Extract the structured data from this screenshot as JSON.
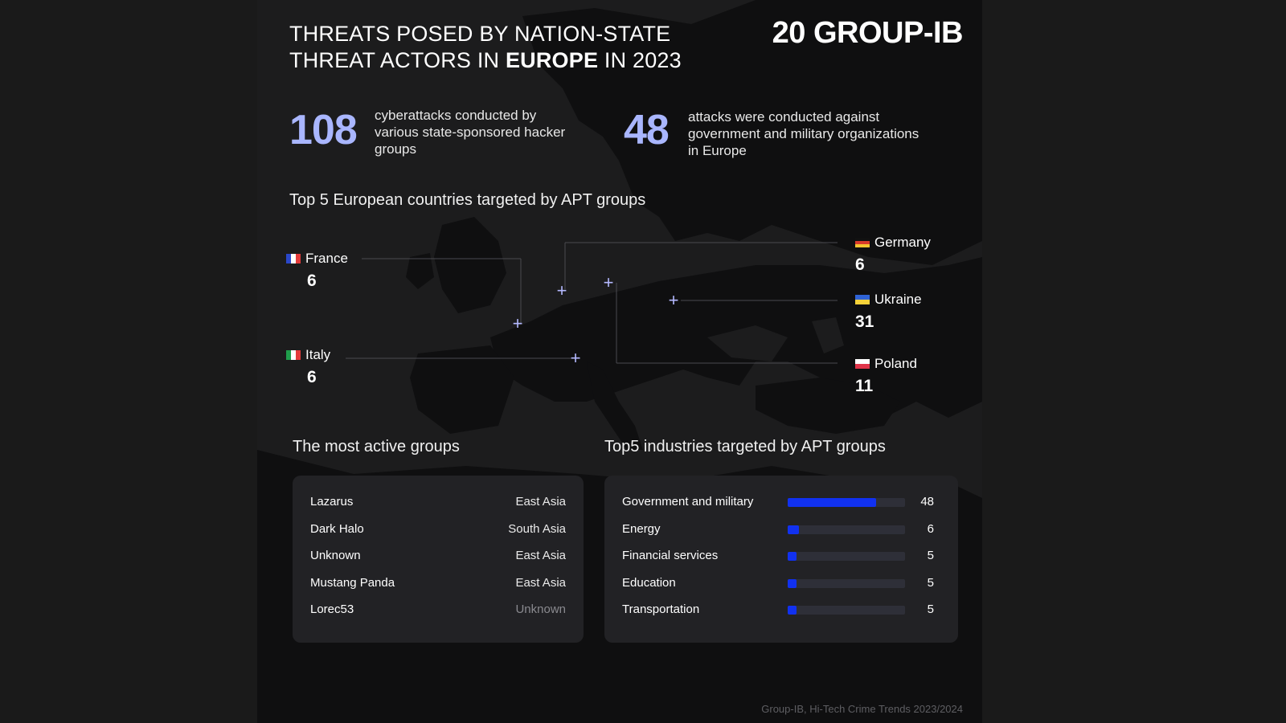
{
  "title": {
    "line1": "THREATS POSED BY NATION-STATE",
    "line2_pre": "THREAT ACTORS IN ",
    "line2_bold": "EUROPE",
    "line2_post": " IN 2023"
  },
  "logo": {
    "number": "20",
    "name": "GROUP-IB"
  },
  "stats": [
    {
      "value": "108",
      "text": "cyberattacks conducted by various state-sponsored hacker groups"
    },
    {
      "value": "48",
      "text": "attacks were conducted against government and military organizations in Europe"
    }
  ],
  "countries_title": "Top 5 European countries targeted by APT groups",
  "countries": {
    "france": {
      "name": "France",
      "value": "6"
    },
    "italy": {
      "name": "Italy",
      "value": "6"
    },
    "germany": {
      "name": "Germany",
      "value": "6"
    },
    "ukraine": {
      "name": "Ukraine",
      "value": "31"
    },
    "poland": {
      "name": "Poland",
      "value": "11"
    }
  },
  "groups_title": "The most active groups",
  "groups": [
    {
      "name": "Lazarus",
      "region": "East Asia"
    },
    {
      "name": "Dark Halo",
      "region": "South Asia"
    },
    {
      "name": "Unknown",
      "region": "East Asia"
    },
    {
      "name": "Mustang Panda",
      "region": "East Asia"
    },
    {
      "name": "Lorec53",
      "region": "Unknown"
    }
  ],
  "industries_title": "Top5 industries targeted by APT groups",
  "industries": [
    {
      "name": "Government and military",
      "value": 48,
      "value_label": "48"
    },
    {
      "name": "Energy",
      "value": 6,
      "value_label": "6"
    },
    {
      "name": "Financial services",
      "value": 5,
      "value_label": "5"
    },
    {
      "name": "Education",
      "value": 5,
      "value_label": "5"
    },
    {
      "name": "Transportation",
      "value": 5,
      "value_label": "5"
    }
  ],
  "industries_bar_max": 64,
  "footer": "Group-IB, Hi-Tech Crime Trends 2023/2024",
  "colors": {
    "accent_number": "#a9b6ff",
    "bar_fill": "#1131f0",
    "marker": "#b4b9ff"
  },
  "icons": [
    "france-flag-icon",
    "italy-flag-icon",
    "germany-flag-icon",
    "ukraine-flag-icon",
    "poland-flag-icon",
    "plus-marker-icon"
  ]
}
